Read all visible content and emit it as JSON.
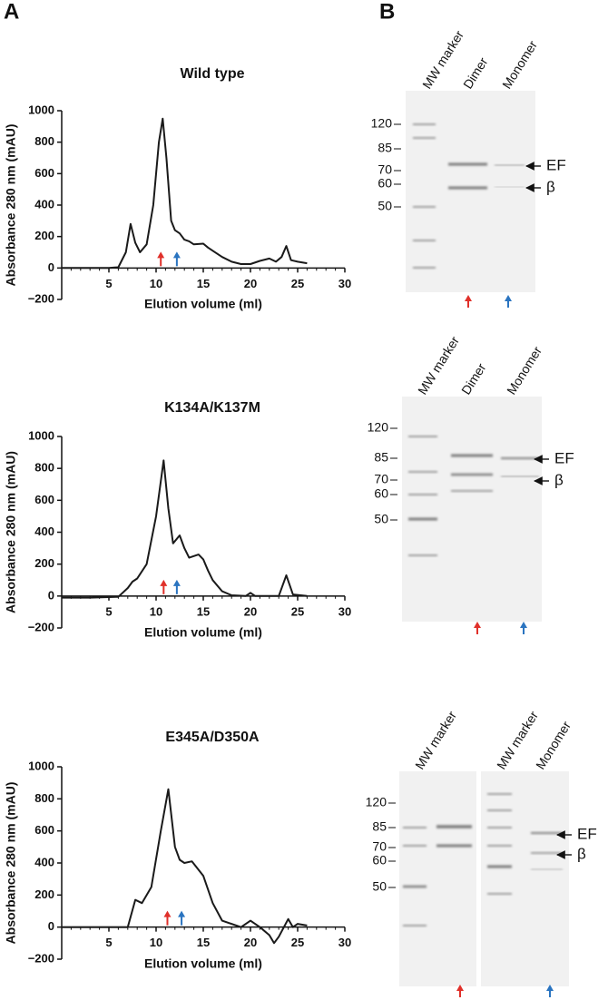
{
  "panels": [
    "A",
    "B"
  ],
  "chart_data": [
    {
      "type": "line",
      "title": "Wild type",
      "x_label": "Elution volume (ml)",
      "y_label": "Absorbance 280 nm (mAU)",
      "xlim": [
        0,
        30
      ],
      "xticks": [
        5,
        10,
        15,
        20,
        25,
        30
      ],
      "ylim": [
        -200,
        1000
      ],
      "yticks": [
        {
          "value": -200,
          "label": "−200"
        },
        0,
        200,
        400,
        600,
        800,
        1000
      ],
      "series": [
        {
          "color": "#1a1a1a",
          "x": [
            0,
            5,
            6,
            6.8,
            7.3,
            7.8,
            8.3,
            9,
            9.7,
            10.3,
            10.7,
            11.1,
            11.6,
            12,
            12.5,
            13,
            13.5,
            14,
            15,
            15.5,
            16,
            17,
            18,
            19,
            20,
            21,
            22,
            22.7,
            23.3,
            23.8,
            24.3,
            25,
            26
          ],
          "values": [
            0,
            0,
            5,
            100,
            280,
            160,
            100,
            150,
            400,
            800,
            950,
            700,
            300,
            240,
            220,
            180,
            170,
            150,
            155,
            130,
            110,
            70,
            40,
            25,
            25,
            45,
            60,
            40,
            70,
            140,
            50,
            40,
            30
          ]
        }
      ],
      "arrows": [
        {
          "x": 10.5,
          "color": "#e0302a"
        },
        {
          "x": 12.2,
          "color": "#2a74c0"
        }
      ]
    },
    {
      "type": "line",
      "title": "K134A/K137M",
      "x_label": "Elution volume (ml)",
      "y_label": "Absorbance 280 nm (mAU)",
      "xlim": [
        0,
        30
      ],
      "xticks": [
        5,
        10,
        15,
        20,
        25,
        30
      ],
      "ylim": [
        -200,
        1000
      ],
      "yticks": [
        {
          "value": -200,
          "label": "−200"
        },
        0,
        200,
        400,
        600,
        800,
        1000
      ],
      "series": [
        {
          "color": "#1a1a1a",
          "x": [
            0,
            3,
            6,
            7,
            7.5,
            8,
            9,
            10,
            10.8,
            11.3,
            11.8,
            12.5,
            13,
            13.5,
            14.5,
            15,
            15.5,
            16,
            17,
            18,
            19.5,
            20,
            20.5,
            23,
            23.8,
            24.5,
            26
          ],
          "values": [
            -10,
            -10,
            -5,
            50,
            90,
            110,
            200,
            500,
            850,
            550,
            330,
            380,
            300,
            240,
            260,
            230,
            160,
            100,
            30,
            5,
            0,
            20,
            0,
            0,
            130,
            10,
            0
          ]
        }
      ],
      "arrows": [
        {
          "x": 10.8,
          "color": "#e0302a"
        },
        {
          "x": 12.2,
          "color": "#2a74c0"
        }
      ]
    },
    {
      "type": "line",
      "title": "E345A/D350A",
      "x_label": "Elution volume (ml)",
      "y_label": "Absorbance 280 nm (mAU)",
      "xlim": [
        0,
        30
      ],
      "xticks": [
        5,
        10,
        15,
        20,
        25,
        30
      ],
      "ylim": [
        -200,
        1000
      ],
      "yticks": [
        {
          "value": -200,
          "label": "−200"
        },
        0,
        200,
        400,
        600,
        800,
        1000
      ],
      "series": [
        {
          "color": "#1a1a1a",
          "x": [
            0,
            7,
            7.8,
            8.5,
            9.5,
            10.5,
            11.3,
            12,
            12.5,
            13,
            13.8,
            15,
            16,
            17,
            19,
            20,
            21,
            22,
            22.5,
            23,
            24,
            24.5,
            25,
            26
          ],
          "values": [
            0,
            0,
            170,
            150,
            250,
            600,
            860,
            500,
            420,
            400,
            410,
            320,
            150,
            40,
            0,
            40,
            0,
            -50,
            -100,
            -60,
            50,
            0,
            20,
            10
          ]
        }
      ],
      "arrows": [
        {
          "x": 11.2,
          "color": "#e0302a"
        },
        {
          "x": 12.7,
          "color": "#2a74c0"
        }
      ]
    }
  ],
  "gels": [
    {
      "lanes": [
        "MW marker",
        "Dimer",
        "Monomer"
      ],
      "ladder": [
        "120",
        "85",
        "70",
        "60",
        "50"
      ],
      "bands": [
        "EF",
        "β"
      ]
    },
    {
      "lanes": [
        "MW marker",
        "Dimer",
        "Monomer"
      ],
      "ladder": [
        "120",
        "85",
        "70",
        "60",
        "50"
      ],
      "bands": [
        "EF",
        "β"
      ]
    },
    {
      "lanes": [
        "MW marker",
        "MW marker",
        "Monomer"
      ],
      "ladder": [
        "120",
        "85",
        "70",
        "60",
        "50"
      ],
      "bands": [
        "EF",
        "β"
      ]
    }
  ]
}
